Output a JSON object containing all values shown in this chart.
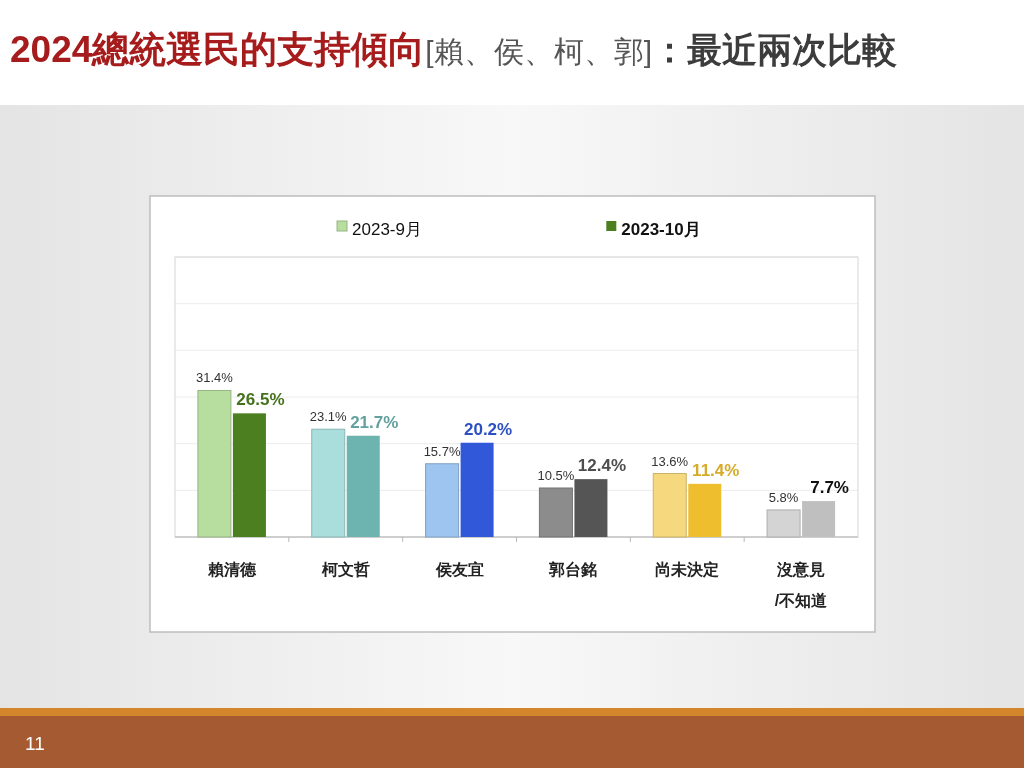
{
  "chart_data": {
    "type": "bar",
    "title": "2024總統選民的支持傾向[賴、侯、柯、郭]：最近兩次比較",
    "categories": [
      "賴清德",
      "柯文哲",
      "侯友宜",
      "郭台銘",
      "尚未決定",
      "沒意見\n/不知道"
    ],
    "series": [
      {
        "name": "2023-9月",
        "color": "#b7dd9f",
        "colors": [
          "#b7dd9f",
          "#a9dedd",
          "#9dc5ef",
          "#8c8c8c",
          "#f6d87e",
          "#d4d4d4"
        ],
        "values": [
          31.4,
          23.1,
          15.7,
          10.5,
          13.6,
          5.8
        ],
        "value_labels": [
          "31.4%",
          "23.1%",
          "15.7%",
          "10.5%",
          "13.6%",
          "5.8%"
        ]
      },
      {
        "name": "2023-10月",
        "color": "#4b7f1f",
        "colors": [
          "#4b7f1f",
          "#6db3b0",
          "#3158d8",
          "#555555",
          "#efbe2f",
          "#bfbfbf"
        ],
        "values": [
          26.5,
          21.7,
          20.2,
          12.4,
          11.4,
          7.7
        ],
        "value_labels": [
          "26.5%",
          "21.7%",
          "20.2%",
          "12.4%",
          "11.4%",
          "7.7%"
        ]
      }
    ],
    "ylim": [
      0,
      60
    ],
    "yticks": [
      {
        "value": 0,
        "label": null
      },
      {
        "value": 10,
        "label": null
      },
      {
        "value": 20,
        "label": null
      },
      {
        "value": 30,
        "label": null
      },
      {
        "value": 40,
        "label": null
      },
      {
        "value": 50,
        "label": null
      },
      {
        "value": 60,
        "label": null
      }
    ],
    "grid": "y",
    "legend": "top",
    "tick_labels": "x",
    "annotations": [
      "11"
    ]
  }
}
